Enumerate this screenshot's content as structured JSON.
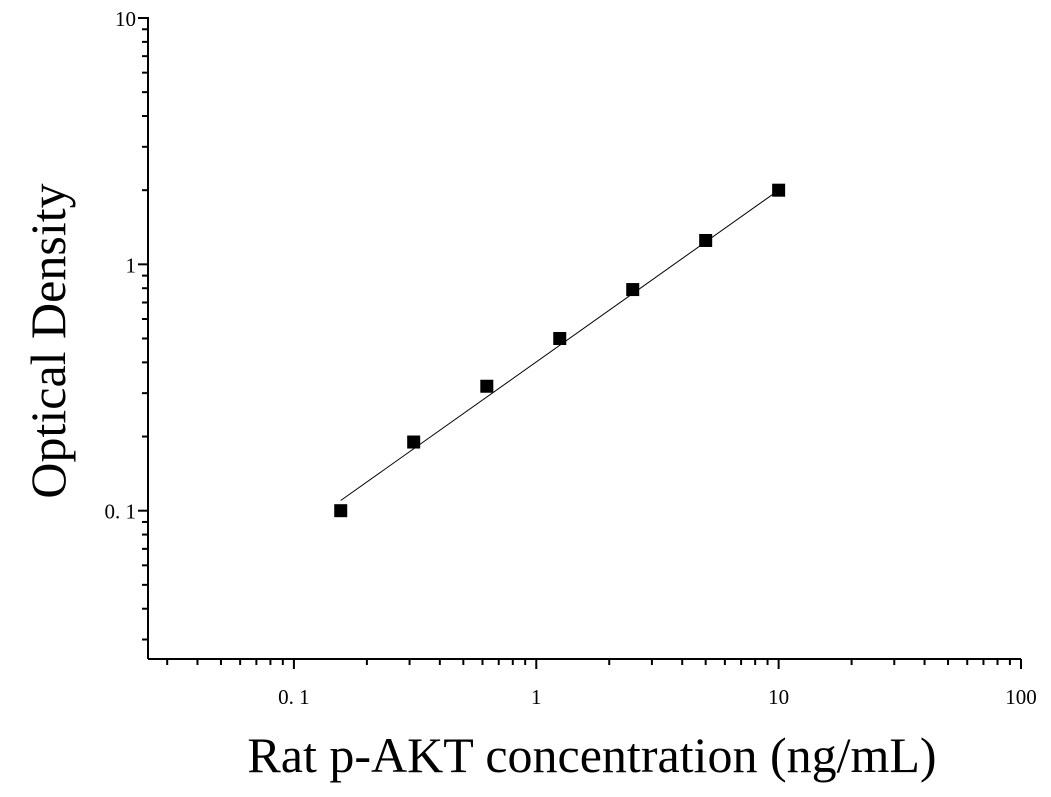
{
  "chart_data": {
    "type": "scatter",
    "title": "",
    "xlabel": "Rat p-AKT concentration (ng/mL)",
    "ylabel": "Optical Density",
    "xscale": "log",
    "yscale": "log",
    "xlim": [
      0.025,
      100
    ],
    "ylim": [
      0.025,
      10
    ],
    "xticks": [
      {
        "value": 0.1,
        "label": "0. 1"
      },
      {
        "value": 1,
        "label": "1"
      },
      {
        "value": 10,
        "label": "10"
      },
      {
        "value": 100,
        "label": "100"
      }
    ],
    "yticks": [
      {
        "value": 0.1,
        "label": "0. 1"
      },
      {
        "value": 1,
        "label": "1"
      },
      {
        "value": 10,
        "label": "10"
      }
    ],
    "grid": false,
    "legend": "none",
    "marker": "square",
    "series": [
      {
        "x": [
          0.156,
          0.312,
          0.625,
          1.25,
          2.5,
          5,
          10
        ],
        "y": [
          0.1,
          0.19,
          0.32,
          0.5,
          0.79,
          1.25,
          2.0
        ]
      }
    ],
    "fit_line": {
      "x": [
        0.156,
        10
      ],
      "y": [
        0.11,
        2.0
      ]
    },
    "colors": {
      "marker": "#000000",
      "line": "#000000",
      "axis": "#000000"
    }
  }
}
